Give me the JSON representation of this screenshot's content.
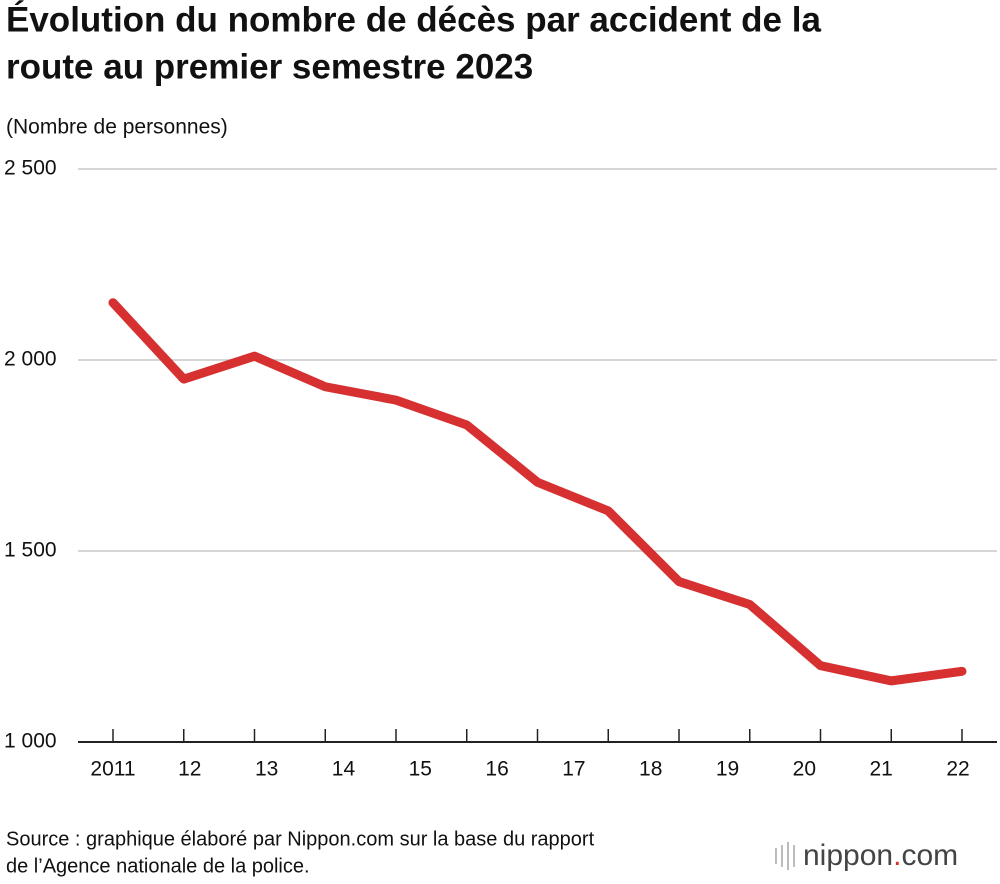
{
  "chart_data": {
    "type": "line",
    "title": [
      "Évolution du nombre de décès par accident de la",
      "route au premier semestre 2023"
    ],
    "y_axis_label": "(Nombre de personnes)",
    "categories": [
      "2011",
      "12",
      "13",
      "14",
      "15",
      "16",
      "17",
      "18",
      "19",
      "20",
      "21",
      "22",
      null
    ],
    "series": [
      {
        "name": "Décès",
        "color": "#d63031",
        "values": [
          2150,
          1950,
          2010,
          1930,
          1895,
          1830,
          1680,
          1605,
          1420,
          1360,
          1200,
          1160,
          1185
        ]
      }
    ],
    "ylim": [
      1000,
      2500
    ],
    "yticks": [
      {
        "value": 1000,
        "label": "1 000"
      },
      {
        "value": 1500,
        "label": "1 500"
      },
      {
        "value": 2000,
        "label": "2 000"
      },
      {
        "value": 2500,
        "label": "2 500"
      }
    ],
    "grid": true,
    "source": [
      "Source : graphique élaboré par Nippon.com sur la base du rapport",
      "de l’Agence nationale de la police."
    ],
    "logo": {
      "name": "nippon",
      "dot": ".",
      "suffix": "com"
    }
  }
}
